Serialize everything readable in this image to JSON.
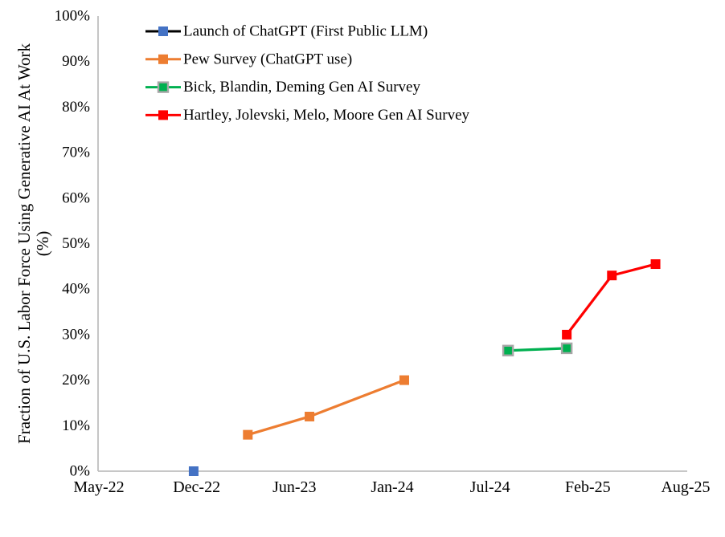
{
  "chart_data": {
    "type": "line",
    "title": "",
    "ylabel": "Fraction of U.S. Labor Force Using Generative AI At Work",
    "ylabel_units": "(%)",
    "xlabel": "",
    "ylim": [
      0,
      100
    ],
    "y_tick_step": 10,
    "y_ticks": [
      "0%",
      "10%",
      "20%",
      "30%",
      "40%",
      "50%",
      "60%",
      "70%",
      "80%",
      "90%",
      "100%"
    ],
    "x_ticks": [
      "May-22",
      "Dec-22",
      "Jun-23",
      "Jan-24",
      "Jul-24",
      "Feb-25",
      "Aug-25"
    ],
    "x_range_months_since_may22": [
      0,
      39
    ],
    "grid": false,
    "legend_position": "top-left-inside",
    "axis_color": "#BFBFBF",
    "text_color": "#000000",
    "series": [
      {
        "name": "Launch of ChatGPT (First Public LLM)",
        "marker_color": "#4472C4",
        "line_color": "#000000",
        "marker_border": "",
        "points": [
          {
            "date": "Dec-22",
            "months_since_may22": 6.3,
            "value": 0
          }
        ]
      },
      {
        "name": "Pew Survey (ChatGPT use)",
        "marker_color": "#ED7D31",
        "line_color": "#ED7D31",
        "marker_border": "",
        "points": [
          {
            "date": "Mar-23",
            "months_since_may22": 9.9,
            "value": 8
          },
          {
            "date": "Jul-23",
            "months_since_may22": 14.0,
            "value": 12
          },
          {
            "date": "Feb-24",
            "months_since_may22": 20.3,
            "value": 20
          }
        ]
      },
      {
        "name": "Bick, Blandin, Deming Gen AI Survey",
        "marker_color": "#00B050",
        "line_color": "#00B050",
        "marker_border": "#A6A6A6",
        "points": [
          {
            "date": "Aug-24",
            "months_since_may22": 27.2,
            "value": 26.5
          },
          {
            "date": "Dec-24",
            "months_since_may22": 31.1,
            "value": 27
          }
        ]
      },
      {
        "name": "Hartley, Jolevski, Melo, Moore Gen AI Survey",
        "marker_color": "#FF0000",
        "line_color": "#FF0000",
        "marker_border": "",
        "points": [
          {
            "date": "Dec-24",
            "months_since_may22": 31.1,
            "value": 30
          },
          {
            "date": "Mar-25",
            "months_since_may22": 34.1,
            "value": 43
          },
          {
            "date": "Jun-25",
            "months_since_may22": 37.0,
            "value": 45.5
          }
        ]
      }
    ]
  }
}
